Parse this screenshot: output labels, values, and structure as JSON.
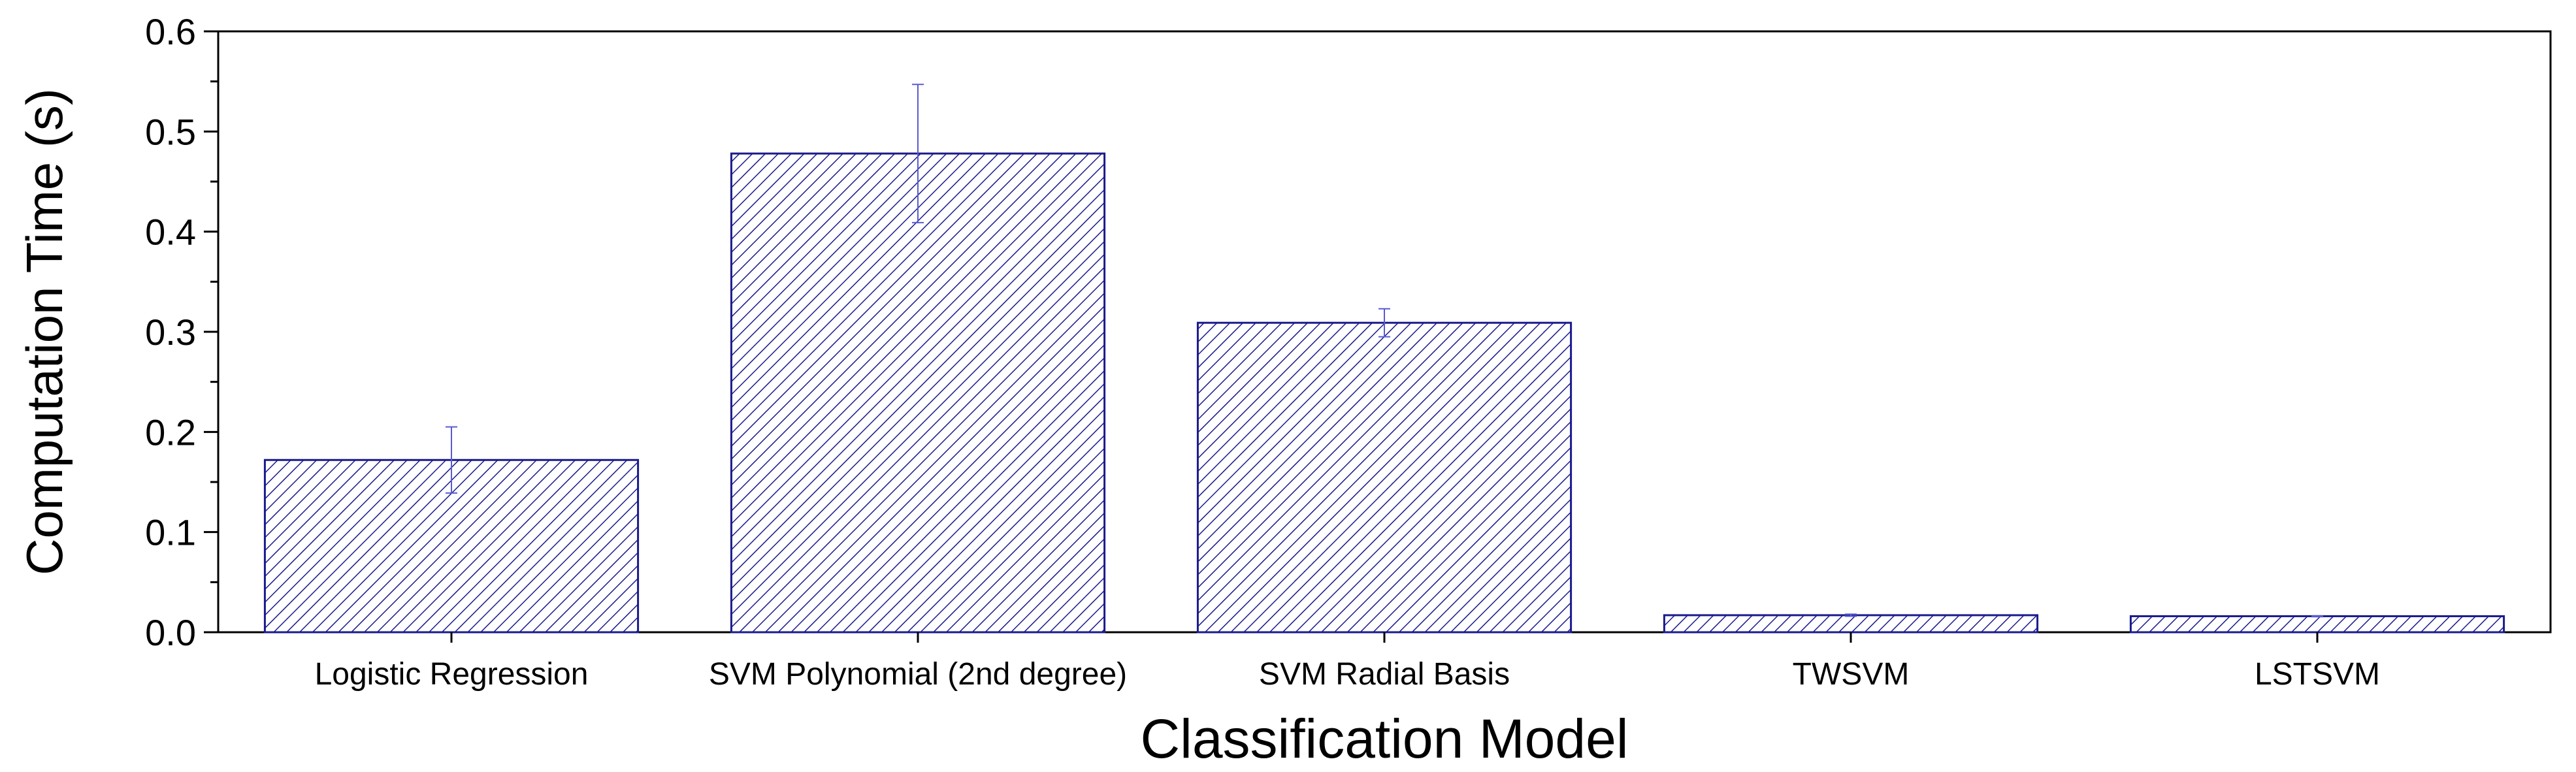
{
  "chart_data": {
    "type": "bar",
    "xlabel": "Classification Model",
    "ylabel": "Computation Time (s)",
    "categories": [
      "Logistic Regression",
      "SVM Polynomial (2nd degree)",
      "SVM Radial Basis",
      "TWSVM",
      "LSTSVM"
    ],
    "values": [
      0.172,
      0.478,
      0.309,
      0.017,
      0.016
    ],
    "errors": [
      0.033,
      0.069,
      0.014,
      0.001,
      0.0005
    ],
    "ylim": [
      0,
      0.6
    ],
    "yticks": [
      "0.0",
      "0.1",
      "0.2",
      "0.3",
      "0.4",
      "0.5",
      "0.6"
    ],
    "grid": false,
    "legend": "none",
    "bar_color": "#1a1a8c",
    "bar_pattern": "diagonal-hatch"
  }
}
